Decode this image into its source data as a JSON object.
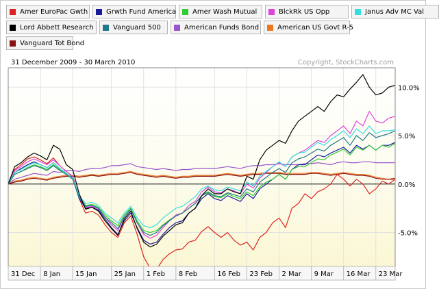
{
  "chart_data": {
    "type": "line",
    "date_range": "31 December 2009 - 30 March 2010",
    "copyright": "Copyright, StockCharts.com",
    "ylim": [
      -8.5,
      12.0
    ],
    "y_ticks": [
      {
        "value": 10,
        "label": "10.0%"
      },
      {
        "value": 5,
        "label": "5.0%"
      },
      {
        "value": 0,
        "label": "0.0%"
      },
      {
        "value": -5,
        "label": "-5.0%"
      }
    ],
    "x_ticks": [
      {
        "index": 0,
        "label": "31 Dec"
      },
      {
        "index": 5,
        "label": "8 Jan"
      },
      {
        "index": 10,
        "label": "15 Jan"
      },
      {
        "index": 16,
        "label": "25 Jan"
      },
      {
        "index": 21,
        "label": "1 Feb"
      },
      {
        "index": 26,
        "label": "8 Feb"
      },
      {
        "index": 32,
        "label": "16 Feb"
      },
      {
        "index": 37,
        "label": "23 Feb"
      },
      {
        "index": 42,
        "label": "2 Mar"
      },
      {
        "index": 47,
        "label": "9 Mar"
      },
      {
        "index": 52,
        "label": "16 Mar"
      },
      {
        "index": 57,
        "label": "23 Mar"
      }
    ],
    "series": [
      {
        "name": "Amer EuroPac Gwth",
        "color": "#dd2222",
        "values": [
          0,
          1.5,
          2.0,
          2.6,
          2.8,
          2.5,
          2.1,
          2.7,
          1.9,
          1.3,
          0.8,
          -1.5,
          -3.0,
          -2.8,
          -3.2,
          -4.2,
          -5.0,
          -5.5,
          -4.0,
          -3.3,
          -5.2,
          -7.5,
          -8.7,
          -8.8,
          -7.8,
          -7.2,
          -6.8,
          -6.7,
          -6.0,
          -5.8,
          -4.9,
          -4.4,
          -5.0,
          -5.5,
          -5.0,
          -5.8,
          -6.3,
          -6.0,
          -6.8,
          -5.5,
          -5.0,
          -4.0,
          -3.5,
          -4.5,
          -2.5,
          -2.0,
          -1.0,
          -1.5,
          -0.8,
          -0.5,
          0.0,
          1.0,
          0.5,
          -0.2,
          0.5,
          0.0,
          -1.0,
          -0.5,
          0.3,
          0.0,
          0.5
        ]
      },
      {
        "name": "Grwth Fund America",
        "color": "#1a1a99",
        "values": [
          0,
          1.2,
          1.6,
          2.0,
          2.3,
          2.0,
          1.7,
          2.2,
          1.6,
          1.1,
          0.6,
          -1.5,
          -2.5,
          -2.4,
          -2.7,
          -3.6,
          -4.5,
          -5.2,
          -3.8,
          -3.0,
          -4.5,
          -5.8,
          -6.2,
          -6.0,
          -5.2,
          -4.5,
          -4.0,
          -3.8,
          -3.0,
          -2.5,
          -1.5,
          -1.0,
          -1.5,
          -1.7,
          -1.2,
          -1.5,
          -1.8,
          -1.0,
          -1.5,
          -0.5,
          0.0,
          0.5,
          1.0,
          0.5,
          1.5,
          2.0,
          2.0,
          2.5,
          3.0,
          2.8,
          3.2,
          3.5,
          3.8,
          3.2,
          4.0,
          3.6,
          4.0,
          3.5,
          4.0,
          4.0,
          4.3
        ]
      },
      {
        "name": "Amer Wash Mutual",
        "color": "#33cc33",
        "values": [
          0,
          1.0,
          1.3,
          1.7,
          2.0,
          1.8,
          1.5,
          2.0,
          1.5,
          1.0,
          0.5,
          -1.3,
          -2.2,
          -2.1,
          -2.4,
          -3.2,
          -3.8,
          -4.3,
          -3.2,
          -2.5,
          -3.8,
          -4.8,
          -5.0,
          -4.8,
          -4.2,
          -3.7,
          -3.3,
          -3.0,
          -2.5,
          -2.0,
          -1.2,
          -0.9,
          -1.3,
          -1.4,
          -1.0,
          -1.3,
          -1.5,
          -0.8,
          -1.2,
          -0.3,
          0.2,
          0.5,
          1.0,
          0.5,
          1.5,
          1.8,
          1.8,
          2.2,
          2.6,
          2.5,
          3.0,
          3.3,
          3.6,
          3.0,
          3.8,
          3.5,
          4.0,
          3.5,
          4.0,
          3.8,
          4.2
        ]
      },
      {
        "name": "BlckRk US Opp",
        "color": "#dd44dd",
        "values": [
          0,
          1.4,
          1.8,
          2.3,
          2.6,
          2.3,
          2.0,
          2.5,
          1.9,
          1.3,
          0.8,
          -1.3,
          -2.4,
          -2.3,
          -2.6,
          -3.4,
          -4.2,
          -4.8,
          -3.4,
          -2.6,
          -4.0,
          -5.2,
          -5.6,
          -5.3,
          -4.5,
          -3.8,
          -3.2,
          -3.0,
          -2.2,
          -1.8,
          -0.8,
          -0.3,
          -0.8,
          -0.9,
          -0.5,
          -0.7,
          -1.0,
          0.0,
          -0.4,
          0.6,
          1.2,
          1.8,
          2.2,
          1.8,
          2.8,
          3.2,
          3.5,
          4.0,
          4.5,
          4.3,
          5.0,
          5.5,
          6.0,
          5.2,
          6.5,
          6.0,
          7.5,
          6.5,
          6.3,
          6.8,
          7.0
        ]
      },
      {
        "name": "Janus Adv MC Val",
        "color": "#33dddd",
        "values": [
          0,
          1.2,
          1.5,
          1.9,
          2.2,
          2.0,
          1.7,
          2.2,
          1.6,
          1.1,
          0.6,
          -1.2,
          -2.0,
          -1.9,
          -2.2,
          -3.0,
          -3.5,
          -4.0,
          -3.0,
          -2.3,
          -3.5,
          -4.3,
          -4.5,
          -4.2,
          -3.5,
          -3.0,
          -2.5,
          -2.3,
          -1.8,
          -1.3,
          -0.5,
          -0.2,
          -0.6,
          -0.7,
          -0.3,
          -0.5,
          -0.7,
          0.2,
          -0.2,
          0.8,
          1.3,
          1.8,
          2.3,
          1.8,
          2.8,
          3.2,
          3.3,
          3.8,
          4.3,
          4.0,
          4.6,
          5.0,
          5.5,
          4.8,
          5.7,
          5.2,
          6.0,
          5.2,
          5.5,
          5.5,
          5.6
        ]
      },
      {
        "name": "Lord Abbett Research",
        "color": "#000000",
        "values": [
          0,
          1.8,
          2.2,
          2.8,
          3.2,
          2.9,
          2.5,
          4.0,
          3.6,
          2.0,
          1.5,
          -1.0,
          -2.6,
          -2.4,
          -2.8,
          -3.8,
          -4.6,
          -5.3,
          -3.6,
          -2.8,
          -4.6,
          -6.0,
          -6.5,
          -6.2,
          -5.4,
          -4.8,
          -4.2,
          -4.0,
          -3.0,
          -2.5,
          -1.2,
          -0.5,
          -1.0,
          -1.0,
          -0.5,
          -0.8,
          -1.0,
          0.8,
          0.5,
          2.5,
          3.5,
          4.0,
          4.5,
          4.2,
          5.5,
          6.5,
          7.0,
          7.5,
          8.0,
          7.5,
          8.5,
          9.2,
          9.0,
          9.8,
          10.5,
          11.3,
          10.0,
          9.2,
          9.4,
          10.0,
          10.2
        ]
      },
      {
        "name": "Vanguard 500",
        "color": "#227788",
        "values": [
          0,
          1.0,
          1.3,
          1.6,
          1.9,
          1.7,
          1.4,
          1.9,
          1.4,
          1.0,
          0.5,
          -1.4,
          -2.3,
          -2.2,
          -2.5,
          -3.4,
          -4.0,
          -4.6,
          -3.4,
          -2.6,
          -4.0,
          -5.0,
          -5.3,
          -5.0,
          -4.3,
          -3.8,
          -3.3,
          -3.0,
          -2.5,
          -2.0,
          -1.2,
          -0.8,
          -1.2,
          -1.3,
          -0.9,
          -1.1,
          -1.3,
          -0.5,
          -0.8,
          0.2,
          0.7,
          1.2,
          1.6,
          1.2,
          2.2,
          2.6,
          2.8,
          3.2,
          3.6,
          3.4,
          4.0,
          4.4,
          4.8,
          4.0,
          5.0,
          4.5,
          5.3,
          4.8,
          5.0,
          5.2,
          5.5
        ]
      },
      {
        "name": "American Funds Bond",
        "color": "#9955cc",
        "values": [
          0,
          0.5,
          0.7,
          0.9,
          1.1,
          1.0,
          0.9,
          1.3,
          1.2,
          1.4,
          1.4,
          1.3,
          1.5,
          1.6,
          1.6,
          1.7,
          1.9,
          1.9,
          2.0,
          2.1,
          1.8,
          1.7,
          1.6,
          1.5,
          1.6,
          1.5,
          1.4,
          1.5,
          1.5,
          1.6,
          1.6,
          1.6,
          1.6,
          1.7,
          1.8,
          1.7,
          1.6,
          1.8,
          1.9,
          1.9,
          2.0,
          2.0,
          2.1,
          2.0,
          2.0,
          2.0,
          2.1,
          2.1,
          2.2,
          2.1,
          2.0,
          2.2,
          2.3,
          2.2,
          2.2,
          2.3,
          2.3,
          2.2,
          2.2,
          2.2,
          2.2
        ]
      },
      {
        "name": "American US Govt R-5",
        "color": "#ee7722",
        "values": [
          0,
          0.3,
          0.4,
          0.6,
          0.7,
          0.6,
          0.5,
          0.7,
          0.8,
          0.9,
          0.9,
          0.8,
          0.9,
          1.0,
          0.9,
          1.0,
          1.1,
          1.1,
          1.2,
          1.3,
          1.1,
          1.0,
          0.9,
          0.8,
          0.9,
          0.8,
          0.7,
          0.8,
          0.8,
          0.9,
          0.9,
          0.9,
          0.9,
          1.0,
          1.1,
          1.0,
          0.9,
          1.0,
          1.1,
          1.1,
          1.2,
          1.2,
          1.2,
          1.1,
          1.1,
          1.1,
          1.1,
          1.2,
          1.2,
          1.1,
          1.0,
          1.1,
          1.2,
          1.1,
          1.0,
          1.0,
          0.9,
          0.7,
          0.6,
          0.5,
          0.4
        ]
      },
      {
        "name": "Vanguard Tot Bond",
        "color": "#881111",
        "values": [
          0,
          0.2,
          0.3,
          0.5,
          0.6,
          0.5,
          0.4,
          0.6,
          0.7,
          0.8,
          0.8,
          0.7,
          0.8,
          0.9,
          0.8,
          0.9,
          1.0,
          1.0,
          1.1,
          1.2,
          1.0,
          0.9,
          0.8,
          0.7,
          0.8,
          0.7,
          0.6,
          0.7,
          0.7,
          0.8,
          0.8,
          0.8,
          0.8,
          0.9,
          1.0,
          0.9,
          0.8,
          0.9,
          1.0,
          1.0,
          1.1,
          1.1,
          1.1,
          1.0,
          1.0,
          1.0,
          1.0,
          1.1,
          1.1,
          1.0,
          0.9,
          1.0,
          1.1,
          1.0,
          0.9,
          0.9,
          0.8,
          0.6,
          0.5,
          0.5,
          0.6
        ]
      }
    ]
  }
}
